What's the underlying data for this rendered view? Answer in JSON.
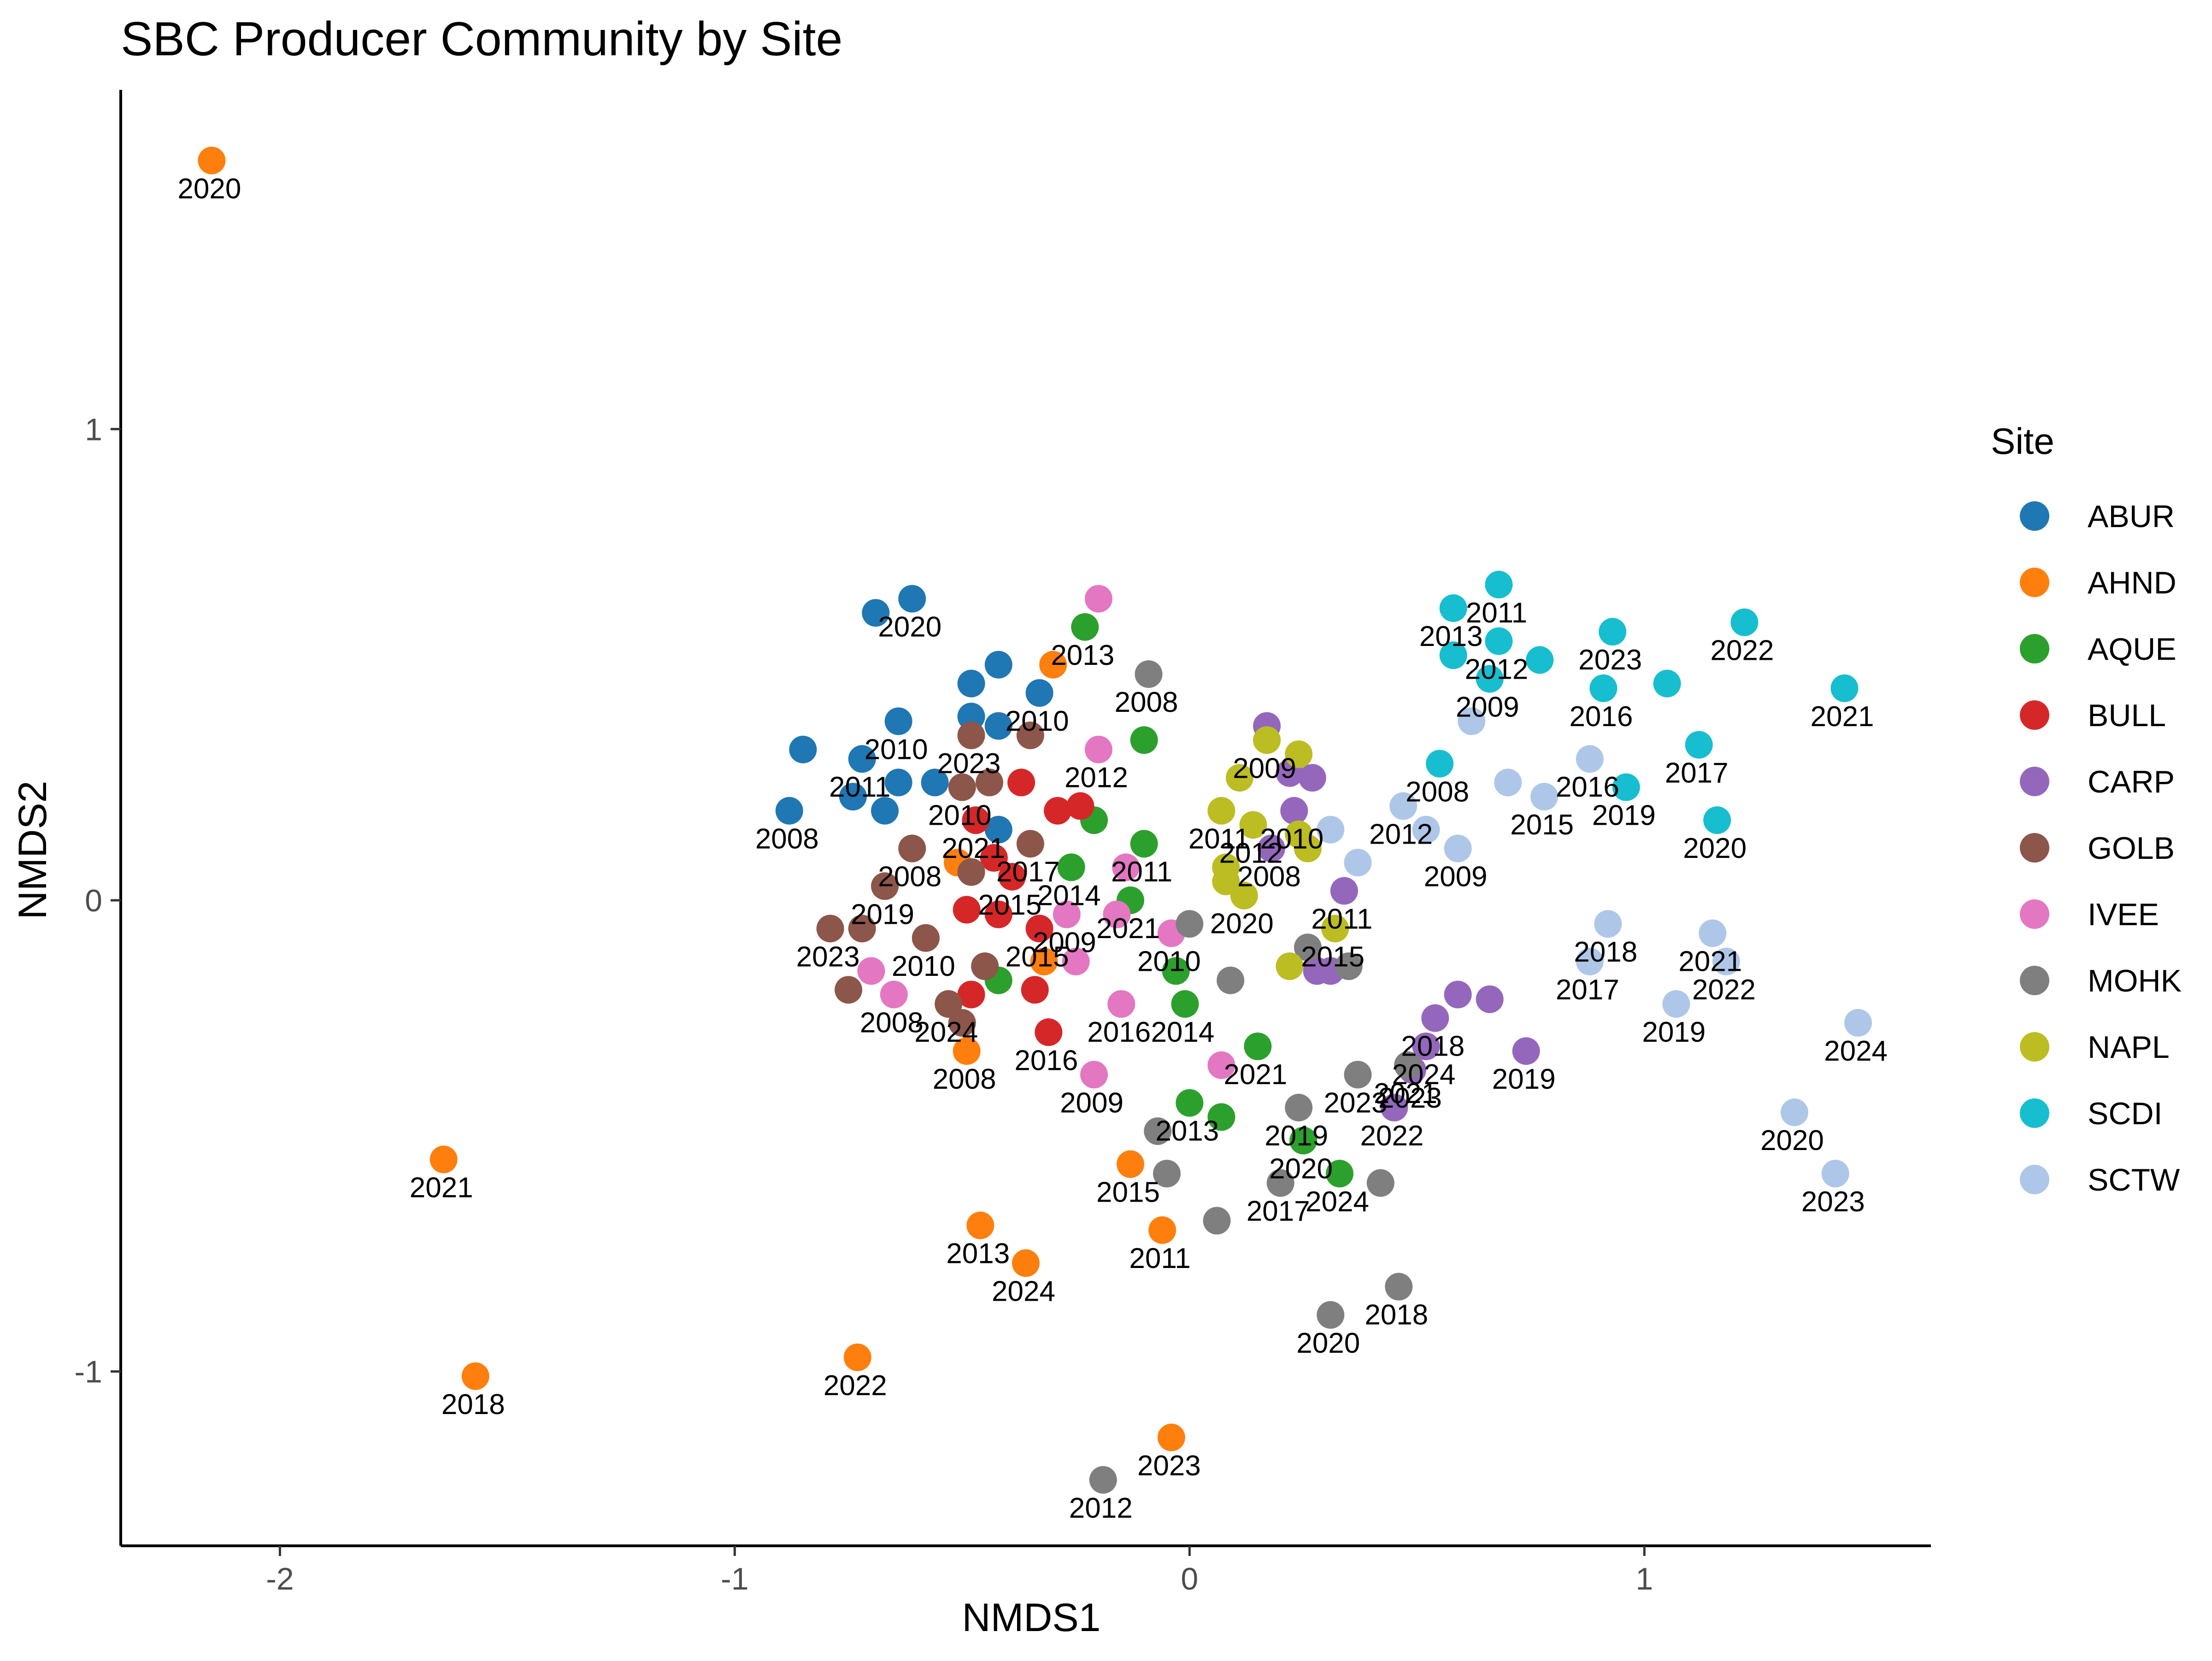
{
  "chart_data": {
    "type": "scatter",
    "title": "SBC Producer Community by Site",
    "xlabel": "NMDS1",
    "ylabel": "NMDS2",
    "xlim": [
      -2.35,
      1.63
    ],
    "ylim": [
      -1.37,
      1.72
    ],
    "x_ticks": [
      -2,
      -1,
      0,
      1
    ],
    "x_tick_labels": [
      "-2",
      "-1",
      "0",
      "1"
    ],
    "y_ticks": [
      -1,
      0,
      1
    ],
    "y_tick_labels": [
      "-1",
      "0",
      "1"
    ],
    "grid": false,
    "legend": {
      "title": "Site",
      "position": "right"
    },
    "series": [
      {
        "name": "ABUR",
        "color": "#1f77b4",
        "points": [
          {
            "x": -0.69,
            "y": 0.61,
            "label": ""
          },
          {
            "x": -0.61,
            "y": 0.64,
            "label": "2020"
          },
          {
            "x": -0.42,
            "y": 0.5,
            "label": ""
          },
          {
            "x": -0.48,
            "y": 0.46,
            "label": ""
          },
          {
            "x": -0.33,
            "y": 0.44,
            "label": "2010"
          },
          {
            "x": -0.48,
            "y": 0.39,
            "label": ""
          },
          {
            "x": -0.42,
            "y": 0.37,
            "label": ""
          },
          {
            "x": -0.64,
            "y": 0.38,
            "label": "2010"
          },
          {
            "x": -0.85,
            "y": 0.32,
            "label": ""
          },
          {
            "x": -0.72,
            "y": 0.3,
            "label": "2011"
          },
          {
            "x": -0.64,
            "y": 0.25,
            "label": ""
          },
          {
            "x": -0.56,
            "y": 0.25,
            "label": ""
          },
          {
            "x": -0.74,
            "y": 0.22,
            "label": ""
          },
          {
            "x": -0.67,
            "y": 0.19,
            "label": ""
          },
          {
            "x": -0.88,
            "y": 0.19,
            "label": "2008"
          },
          {
            "x": -0.42,
            "y": 0.15,
            "label": ""
          }
        ]
      },
      {
        "name": "AHND",
        "color": "#ff7f0e",
        "points": [
          {
            "x": -2.15,
            "y": 1.57,
            "label": "2020"
          },
          {
            "x": -0.3,
            "y": 0.5,
            "label": ""
          },
          {
            "x": -0.51,
            "y": 0.08,
            "label": ""
          },
          {
            "x": -0.32,
            "y": -0.13,
            "label": ""
          },
          {
            "x": -0.49,
            "y": -0.32,
            "label": "2008"
          },
          {
            "x": -1.64,
            "y": -0.55,
            "label": "2021"
          },
          {
            "x": -0.13,
            "y": -0.56,
            "label": "2015"
          },
          {
            "x": -0.46,
            "y": -0.69,
            "label": "2013"
          },
          {
            "x": -0.06,
            "y": -0.7,
            "label": "2011"
          },
          {
            "x": -0.36,
            "y": -0.77,
            "label": "2024"
          },
          {
            "x": -0.73,
            "y": -0.97,
            "label": "2022"
          },
          {
            "x": -1.57,
            "y": -1.01,
            "label": "2018"
          },
          {
            "x": -0.04,
            "y": -1.14,
            "label": "2023"
          }
        ]
      },
      {
        "name": "AQUE",
        "color": "#2ca02c",
        "points": [
          {
            "x": -0.23,
            "y": 0.58,
            "label": "2013"
          },
          {
            "x": -0.1,
            "y": 0.34,
            "label": ""
          },
          {
            "x": -0.21,
            "y": 0.17,
            "label": ""
          },
          {
            "x": -0.1,
            "y": 0.12,
            "label": "2011"
          },
          {
            "x": -0.26,
            "y": 0.07,
            "label": "2014"
          },
          {
            "x": -0.13,
            "y": 0.0,
            "label": "2021"
          },
          {
            "x": -0.03,
            "y": -0.15,
            "label": ""
          },
          {
            "x": -0.42,
            "y": -0.17,
            "label": ""
          },
          {
            "x": -0.01,
            "y": -0.22,
            "label": "2014"
          },
          {
            "x": 0.15,
            "y": -0.31,
            "label": "2021"
          },
          {
            "x": 0.0,
            "y": -0.43,
            "label": "2013"
          },
          {
            "x": 0.07,
            "y": -0.46,
            "label": ""
          },
          {
            "x": 0.25,
            "y": -0.51,
            "label": "2020"
          },
          {
            "x": 0.33,
            "y": -0.58,
            "label": "2024"
          }
        ]
      },
      {
        "name": "BULL",
        "color": "#d62728",
        "points": [
          {
            "x": -0.37,
            "y": 0.25,
            "label": ""
          },
          {
            "x": -0.24,
            "y": 0.2,
            "label": ""
          },
          {
            "x": -0.29,
            "y": 0.19,
            "label": ""
          },
          {
            "x": -0.47,
            "y": 0.17,
            "label": "2021"
          },
          {
            "x": -0.43,
            "y": 0.09,
            "label": ""
          },
          {
            "x": -0.39,
            "y": 0.05,
            "label": "2015"
          },
          {
            "x": -0.49,
            "y": -0.02,
            "label": ""
          },
          {
            "x": -0.42,
            "y": -0.03,
            "label": ""
          },
          {
            "x": -0.33,
            "y": -0.06,
            "label": "2015"
          },
          {
            "x": -0.58,
            "y": -0.08,
            "label": "2010"
          },
          {
            "x": -0.48,
            "y": -0.2,
            "label": ""
          },
          {
            "x": -0.34,
            "y": -0.19,
            "label": ""
          },
          {
            "x": -0.31,
            "y": -0.28,
            "label": "2016"
          }
        ]
      },
      {
        "name": "CARP",
        "color": "#9467bd",
        "points": [
          {
            "x": 0.17,
            "y": 0.37,
            "label": ""
          },
          {
            "x": 0.22,
            "y": 0.27,
            "label": ""
          },
          {
            "x": 0.27,
            "y": 0.26,
            "label": ""
          },
          {
            "x": 0.23,
            "y": 0.19,
            "label": "2010"
          },
          {
            "x": 0.18,
            "y": 0.11,
            "label": "2008"
          },
          {
            "x": 0.34,
            "y": 0.02,
            "label": "2011"
          },
          {
            "x": 0.28,
            "y": -0.15,
            "label": ""
          },
          {
            "x": 0.31,
            "y": -0.15,
            "label": ""
          },
          {
            "x": 0.59,
            "y": -0.2,
            "label": ""
          },
          {
            "x": 0.66,
            "y": -0.21,
            "label": ""
          },
          {
            "x": 0.54,
            "y": -0.25,
            "label": "2018"
          },
          {
            "x": 0.52,
            "y": -0.31,
            "label": "2024"
          },
          {
            "x": 0.74,
            "y": -0.32,
            "label": "2019"
          },
          {
            "x": 0.49,
            "y": -0.36,
            "label": "2023"
          },
          {
            "x": 0.45,
            "y": -0.44,
            "label": "2022"
          }
        ]
      },
      {
        "name": "GOLB",
        "color": "#8c564b",
        "points": [
          {
            "x": -0.48,
            "y": 0.35,
            "label": "2023"
          },
          {
            "x": -0.35,
            "y": 0.35,
            "label": ""
          },
          {
            "x": -0.44,
            "y": 0.25,
            "label": ""
          },
          {
            "x": -0.5,
            "y": 0.24,
            "label": "2010"
          },
          {
            "x": -0.35,
            "y": 0.12,
            "label": "2017"
          },
          {
            "x": -0.61,
            "y": 0.11,
            "label": "2008"
          },
          {
            "x": -0.48,
            "y": 0.06,
            "label": ""
          },
          {
            "x": -0.67,
            "y": 0.03,
            "label": "2019"
          },
          {
            "x": -0.79,
            "y": -0.06,
            "label": "2023"
          },
          {
            "x": -0.72,
            "y": -0.06,
            "label": ""
          },
          {
            "x": -0.58,
            "y": -0.08,
            "label": ""
          },
          {
            "x": -0.45,
            "y": -0.14,
            "label": ""
          },
          {
            "x": -0.75,
            "y": -0.19,
            "label": ""
          },
          {
            "x": -0.53,
            "y": -0.22,
            "label": "2024"
          },
          {
            "x": -0.5,
            "y": -0.26,
            "label": ""
          }
        ]
      },
      {
        "name": "IVEE",
        "color": "#e377c2",
        "points": [
          {
            "x": -0.2,
            "y": 0.64,
            "label": ""
          },
          {
            "x": -0.2,
            "y": 0.32,
            "label": "2012"
          },
          {
            "x": -0.14,
            "y": 0.07,
            "label": ""
          },
          {
            "x": -0.27,
            "y": -0.03,
            "label": "2009"
          },
          {
            "x": -0.16,
            "y": -0.03,
            "label": ""
          },
          {
            "x": -0.04,
            "y": -0.07,
            "label": "2010"
          },
          {
            "x": -0.25,
            "y": -0.13,
            "label": ""
          },
          {
            "x": -0.7,
            "y": -0.15,
            "label": ""
          },
          {
            "x": -0.65,
            "y": -0.2,
            "label": "2008"
          },
          {
            "x": -0.15,
            "y": -0.22,
            "label": "2016"
          },
          {
            "x": 0.07,
            "y": -0.35,
            "label": ""
          },
          {
            "x": -0.21,
            "y": -0.37,
            "label": "2009"
          }
        ]
      },
      {
        "name": "MOHK",
        "color": "#7f7f7f",
        "points": [
          {
            "x": -0.09,
            "y": 0.48,
            "label": "2008"
          },
          {
            "x": 0.0,
            "y": -0.05,
            "label": ""
          },
          {
            "x": 0.26,
            "y": -0.1,
            "label": ""
          },
          {
            "x": 0.09,
            "y": -0.17,
            "label": ""
          },
          {
            "x": 0.35,
            "y": -0.14,
            "label": ""
          },
          {
            "x": 0.37,
            "y": -0.37,
            "label": "2023"
          },
          {
            "x": 0.48,
            "y": -0.35,
            "label": "2021"
          },
          {
            "x": 0.24,
            "y": -0.44,
            "label": "2019"
          },
          {
            "x": -0.07,
            "y": -0.49,
            "label": ""
          },
          {
            "x": -0.05,
            "y": -0.58,
            "label": ""
          },
          {
            "x": 0.2,
            "y": -0.6,
            "label": "2017"
          },
          {
            "x": 0.42,
            "y": -0.6,
            "label": ""
          },
          {
            "x": 0.06,
            "y": -0.68,
            "label": ""
          },
          {
            "x": 0.46,
            "y": -0.82,
            "label": "2018"
          },
          {
            "x": 0.31,
            "y": -0.88,
            "label": "2020"
          },
          {
            "x": -0.19,
            "y": -1.23,
            "label": "2012"
          }
        ]
      },
      {
        "name": "NAPL",
        "color": "#bcbd22",
        "points": [
          {
            "x": 0.17,
            "y": 0.34,
            "label": "2009"
          },
          {
            "x": 0.24,
            "y": 0.31,
            "label": ""
          },
          {
            "x": 0.11,
            "y": 0.26,
            "label": ""
          },
          {
            "x": 0.07,
            "y": 0.19,
            "label": "2011"
          },
          {
            "x": 0.14,
            "y": 0.16,
            "label": "2012"
          },
          {
            "x": 0.24,
            "y": 0.14,
            "label": ""
          },
          {
            "x": 0.26,
            "y": 0.11,
            "label": ""
          },
          {
            "x": 0.08,
            "y": 0.07,
            "label": ""
          },
          {
            "x": 0.08,
            "y": 0.04,
            "label": ""
          },
          {
            "x": 0.12,
            "y": 0.01,
            "label": "2020"
          },
          {
            "x": 0.32,
            "y": -0.06,
            "label": "2015"
          },
          {
            "x": 0.22,
            "y": -0.14,
            "label": ""
          }
        ]
      },
      {
        "name": "SCDI",
        "color": "#17becf",
        "points": [
          {
            "x": 0.68,
            "y": 0.67,
            "label": "2011"
          },
          {
            "x": 0.58,
            "y": 0.62,
            "label": "2013"
          },
          {
            "x": 0.93,
            "y": 0.57,
            "label": "2023"
          },
          {
            "x": 1.22,
            "y": 0.59,
            "label": "2022"
          },
          {
            "x": 0.68,
            "y": 0.55,
            "label": "2012"
          },
          {
            "x": 0.58,
            "y": 0.52,
            "label": ""
          },
          {
            "x": 0.77,
            "y": 0.51,
            "label": ""
          },
          {
            "x": 0.66,
            "y": 0.47,
            "label": "2009"
          },
          {
            "x": 0.91,
            "y": 0.45,
            "label": "2016"
          },
          {
            "x": 1.05,
            "y": 0.46,
            "label": ""
          },
          {
            "x": 1.44,
            "y": 0.45,
            "label": "2021"
          },
          {
            "x": 0.55,
            "y": 0.29,
            "label": "2008"
          },
          {
            "x": 1.12,
            "y": 0.33,
            "label": "2017"
          },
          {
            "x": 0.96,
            "y": 0.24,
            "label": "2019"
          },
          {
            "x": 1.16,
            "y": 0.17,
            "label": "2020"
          }
        ]
      },
      {
        "name": "SCTW",
        "color": "#aec7e8",
        "points": [
          {
            "x": 0.62,
            "y": 0.38,
            "label": ""
          },
          {
            "x": 0.88,
            "y": 0.3,
            "label": "2016"
          },
          {
            "x": 0.7,
            "y": 0.25,
            "label": ""
          },
          {
            "x": 0.78,
            "y": 0.22,
            "label": "2015"
          },
          {
            "x": 0.47,
            "y": 0.2,
            "label": "2012"
          },
          {
            "x": 0.31,
            "y": 0.15,
            "label": ""
          },
          {
            "x": 0.52,
            "y": 0.15,
            "label": ""
          },
          {
            "x": 0.59,
            "y": 0.11,
            "label": "2009"
          },
          {
            "x": 0.37,
            "y": 0.08,
            "label": ""
          },
          {
            "x": 0.92,
            "y": -0.05,
            "label": "2018"
          },
          {
            "x": 1.15,
            "y": -0.07,
            "label": "2021"
          },
          {
            "x": 1.18,
            "y": -0.13,
            "label": "2022"
          },
          {
            "x": 0.88,
            "y": -0.13,
            "label": "2017"
          },
          {
            "x": 1.07,
            "y": -0.22,
            "label": "2019"
          },
          {
            "x": 1.47,
            "y": -0.26,
            "label": "2024"
          },
          {
            "x": 1.33,
            "y": -0.45,
            "label": "2020"
          },
          {
            "x": 1.42,
            "y": -0.58,
            "label": "2023"
          }
        ]
      }
    ]
  }
}
